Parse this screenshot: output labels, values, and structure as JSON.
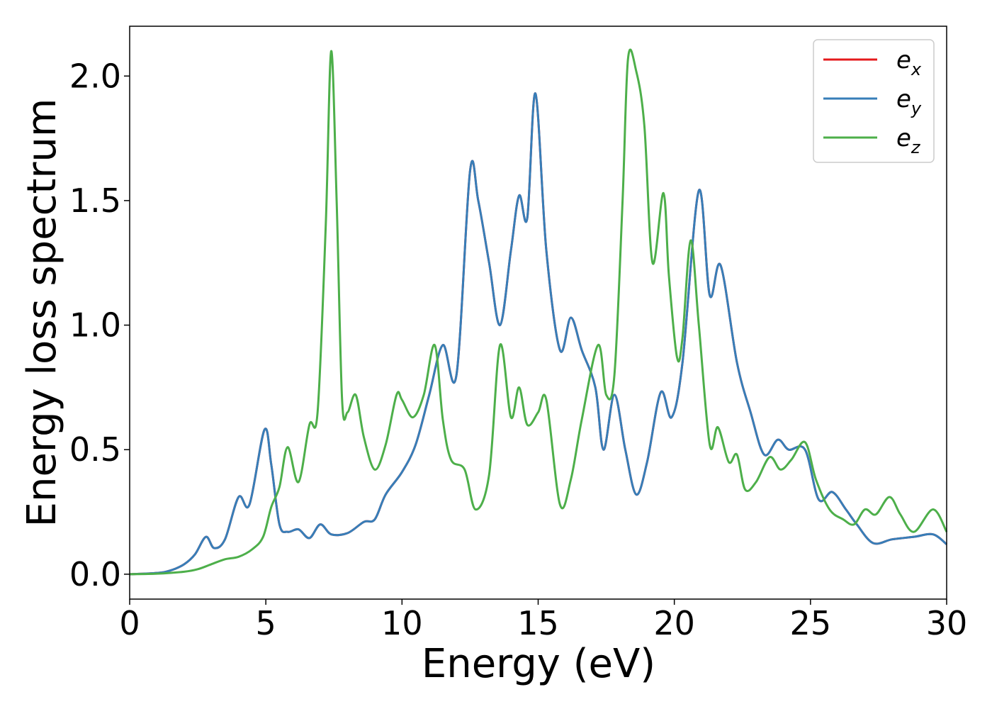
{
  "chart_data": {
    "type": "line",
    "title": "",
    "xlabel": "Energy (eV)",
    "ylabel": "Energy loss spectrum",
    "xlim": [
      0,
      30
    ],
    "ylim": [
      -0.1,
      2.2
    ],
    "xticks": [
      0,
      5,
      10,
      15,
      20,
      25,
      30
    ],
    "xtick_labels": [
      "0",
      "5",
      "10",
      "15",
      "20",
      "25",
      "30"
    ],
    "yticks": [
      0.0,
      0.5,
      1.0,
      1.5,
      2.0
    ],
    "ytick_labels": [
      "0.0",
      "0.5",
      "1.0",
      "1.5",
      "2.0"
    ],
    "grid": false,
    "legend_position": "top-right",
    "colors": {
      "ex": "#e41a1c",
      "ey": "#377eb8",
      "ez": "#4daf4a"
    },
    "series": [
      {
        "key": "ex",
        "label_main": "e",
        "label_sub": "x",
        "points": [
          [
            0,
            0
          ],
          [
            1,
            0.005
          ],
          [
            1.5,
            0.015
          ],
          [
            2,
            0.04
          ],
          [
            2.4,
            0.08
          ],
          [
            2.8,
            0.15
          ],
          [
            3.1,
            0.105
          ],
          [
            3.5,
            0.14
          ],
          [
            4,
            0.31
          ],
          [
            4.4,
            0.28
          ],
          [
            4.95,
            0.58
          ],
          [
            5.2,
            0.44
          ],
          [
            5.5,
            0.2
          ],
          [
            5.8,
            0.17
          ],
          [
            6.2,
            0.18
          ],
          [
            6.6,
            0.145
          ],
          [
            7,
            0.2
          ],
          [
            7.4,
            0.16
          ],
          [
            8,
            0.165
          ],
          [
            8.6,
            0.21
          ],
          [
            9,
            0.22
          ],
          [
            9.4,
            0.32
          ],
          [
            10,
            0.41
          ],
          [
            10.5,
            0.52
          ],
          [
            11,
            0.72
          ],
          [
            11.5,
            0.92
          ],
          [
            12,
            0.8
          ],
          [
            12.5,
            1.62
          ],
          [
            12.8,
            1.5
          ],
          [
            13.2,
            1.25
          ],
          [
            13.6,
            1.0
          ],
          [
            14,
            1.3
          ],
          [
            14.3,
            1.52
          ],
          [
            14.6,
            1.43
          ],
          [
            14.9,
            1.93
          ],
          [
            15.3,
            1.3
          ],
          [
            15.8,
            0.9
          ],
          [
            16.2,
            1.03
          ],
          [
            16.6,
            0.9
          ],
          [
            17.1,
            0.75
          ],
          [
            17.4,
            0.5
          ],
          [
            17.8,
            0.72
          ],
          [
            18.2,
            0.5
          ],
          [
            18.6,
            0.32
          ],
          [
            19,
            0.45
          ],
          [
            19.5,
            0.73
          ],
          [
            19.9,
            0.63
          ],
          [
            20.3,
            0.85
          ],
          [
            20.9,
            1.54
          ],
          [
            21.3,
            1.12
          ],
          [
            21.7,
            1.24
          ],
          [
            22.3,
            0.85
          ],
          [
            22.8,
            0.65
          ],
          [
            23.3,
            0.48
          ],
          [
            23.8,
            0.54
          ],
          [
            24.2,
            0.5
          ],
          [
            24.8,
            0.5
          ],
          [
            25.3,
            0.3
          ],
          [
            25.8,
            0.33
          ],
          [
            26.3,
            0.26
          ],
          [
            26.7,
            0.2
          ],
          [
            27.3,
            0.125
          ],
          [
            28,
            0.14
          ],
          [
            28.8,
            0.15
          ],
          [
            29.5,
            0.16
          ],
          [
            30,
            0.12
          ]
        ]
      },
      {
        "key": "ey",
        "label_main": "e",
        "label_sub": "y",
        "points": [
          [
            0,
            0
          ],
          [
            1,
            0.005
          ],
          [
            1.5,
            0.015
          ],
          [
            2,
            0.04
          ],
          [
            2.4,
            0.08
          ],
          [
            2.8,
            0.15
          ],
          [
            3.1,
            0.105
          ],
          [
            3.5,
            0.14
          ],
          [
            4,
            0.31
          ],
          [
            4.4,
            0.28
          ],
          [
            4.95,
            0.58
          ],
          [
            5.2,
            0.44
          ],
          [
            5.5,
            0.2
          ],
          [
            5.8,
            0.17
          ],
          [
            6.2,
            0.18
          ],
          [
            6.6,
            0.145
          ],
          [
            7,
            0.2
          ],
          [
            7.4,
            0.16
          ],
          [
            8,
            0.165
          ],
          [
            8.6,
            0.21
          ],
          [
            9,
            0.22
          ],
          [
            9.4,
            0.32
          ],
          [
            10,
            0.41
          ],
          [
            10.5,
            0.52
          ],
          [
            11,
            0.72
          ],
          [
            11.5,
            0.92
          ],
          [
            12,
            0.8
          ],
          [
            12.5,
            1.62
          ],
          [
            12.8,
            1.5
          ],
          [
            13.2,
            1.25
          ],
          [
            13.6,
            1.0
          ],
          [
            14,
            1.3
          ],
          [
            14.3,
            1.52
          ],
          [
            14.6,
            1.43
          ],
          [
            14.9,
            1.93
          ],
          [
            15.3,
            1.3
          ],
          [
            15.8,
            0.9
          ],
          [
            16.2,
            1.03
          ],
          [
            16.6,
            0.9
          ],
          [
            17.1,
            0.75
          ],
          [
            17.4,
            0.5
          ],
          [
            17.8,
            0.72
          ],
          [
            18.2,
            0.5
          ],
          [
            18.6,
            0.32
          ],
          [
            19,
            0.45
          ],
          [
            19.5,
            0.73
          ],
          [
            19.9,
            0.63
          ],
          [
            20.3,
            0.85
          ],
          [
            20.9,
            1.54
          ],
          [
            21.3,
            1.12
          ],
          [
            21.7,
            1.24
          ],
          [
            22.3,
            0.85
          ],
          [
            22.8,
            0.65
          ],
          [
            23.3,
            0.48
          ],
          [
            23.8,
            0.54
          ],
          [
            24.2,
            0.5
          ],
          [
            24.8,
            0.5
          ],
          [
            25.3,
            0.3
          ],
          [
            25.8,
            0.33
          ],
          [
            26.3,
            0.26
          ],
          [
            26.7,
            0.2
          ],
          [
            27.3,
            0.125
          ],
          [
            28,
            0.14
          ],
          [
            28.8,
            0.15
          ],
          [
            29.5,
            0.16
          ],
          [
            30,
            0.12
          ]
        ]
      },
      {
        "key": "ez",
        "label_main": "e",
        "label_sub": "z",
        "points": [
          [
            0,
            0
          ],
          [
            1,
            0.002
          ],
          [
            2,
            0.01
          ],
          [
            2.5,
            0.02
          ],
          [
            3,
            0.04
          ],
          [
            3.5,
            0.06
          ],
          [
            4,
            0.07
          ],
          [
            4.5,
            0.1
          ],
          [
            4.9,
            0.15
          ],
          [
            5.2,
            0.27
          ],
          [
            5.5,
            0.35
          ],
          [
            5.8,
            0.51
          ],
          [
            6.2,
            0.37
          ],
          [
            6.6,
            0.6
          ],
          [
            6.9,
            0.65
          ],
          [
            7.2,
            1.4
          ],
          [
            7.4,
            2.1
          ],
          [
            7.6,
            1.5
          ],
          [
            7.8,
            0.7
          ],
          [
            8,
            0.65
          ],
          [
            8.3,
            0.72
          ],
          [
            8.6,
            0.55
          ],
          [
            9,
            0.42
          ],
          [
            9.4,
            0.52
          ],
          [
            9.8,
            0.72
          ],
          [
            10,
            0.7
          ],
          [
            10.4,
            0.63
          ],
          [
            10.8,
            0.72
          ],
          [
            11.2,
            0.92
          ],
          [
            11.5,
            0.62
          ],
          [
            11.8,
            0.46
          ],
          [
            12.3,
            0.42
          ],
          [
            12.7,
            0.26
          ],
          [
            13.2,
            0.4
          ],
          [
            13.6,
            0.92
          ],
          [
            14,
            0.63
          ],
          [
            14.3,
            0.75
          ],
          [
            14.6,
            0.6
          ],
          [
            15,
            0.65
          ],
          [
            15.3,
            0.7
          ],
          [
            15.8,
            0.28
          ],
          [
            16.2,
            0.38
          ],
          [
            16.6,
            0.62
          ],
          [
            17.2,
            0.92
          ],
          [
            17.5,
            0.72
          ],
          [
            17.8,
            0.8
          ],
          [
            18.1,
            1.5
          ],
          [
            18.3,
            2.07
          ],
          [
            18.6,
            2.02
          ],
          [
            18.9,
            1.8
          ],
          [
            19.2,
            1.25
          ],
          [
            19.6,
            1.53
          ],
          [
            19.8,
            1.2
          ],
          [
            20.1,
            0.87
          ],
          [
            20.3,
            0.95
          ],
          [
            20.6,
            1.34
          ],
          [
            20.9,
            1.0
          ],
          [
            21.3,
            0.52
          ],
          [
            21.6,
            0.59
          ],
          [
            22,
            0.45
          ],
          [
            22.3,
            0.48
          ],
          [
            22.6,
            0.34
          ],
          [
            23,
            0.37
          ],
          [
            23.5,
            0.47
          ],
          [
            23.9,
            0.42
          ],
          [
            24.3,
            0.46
          ],
          [
            24.8,
            0.53
          ],
          [
            25.2,
            0.38
          ],
          [
            25.7,
            0.26
          ],
          [
            26.2,
            0.22
          ],
          [
            26.6,
            0.2
          ],
          [
            27,
            0.26
          ],
          [
            27.4,
            0.24
          ],
          [
            27.9,
            0.31
          ],
          [
            28.3,
            0.24
          ],
          [
            28.8,
            0.17
          ],
          [
            29.5,
            0.26
          ],
          [
            30,
            0.17
          ]
        ]
      }
    ]
  }
}
